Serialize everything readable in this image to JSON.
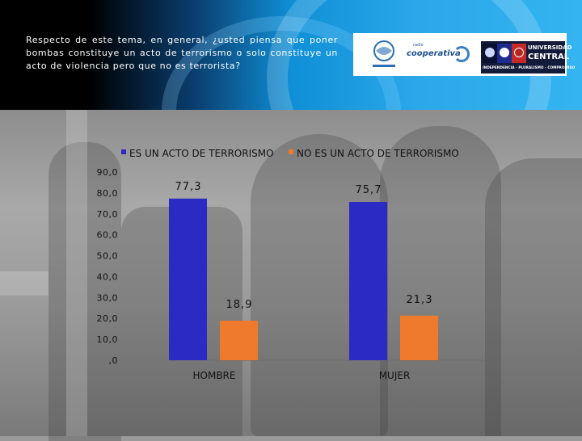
{
  "question": "Respecto de este tema, en general, ¿usted piensa que poner bombas constituye un acto de terrorismo o solo constituye un acto de violencia pero que no es terrorista?",
  "logos": {
    "coop_name": "cooperativa",
    "coop_top": "radio",
    "uc_line1": "UNIVERSIDAD",
    "uc_line2": "CENTRAL",
    "uc_tagline": "INDEPENDENCIA - PLURALISMO - COMPROMISO"
  },
  "colors": {
    "series1": "#2b2bc4",
    "series2": "#f07a2c"
  },
  "chart_data": {
    "type": "bar",
    "categories": [
      "HOMBRE",
      "MUJER"
    ],
    "series": [
      {
        "name": "ES UN ACTO DE TERRORISMO",
        "values": [
          77.3,
          75.7
        ],
        "labels": [
          "77,3",
          "75,7"
        ]
      },
      {
        "name": "NO ES UN ACTO DE TERRORISMO",
        "values": [
          18.9,
          21.3
        ],
        "labels": [
          "18,9",
          "21,3"
        ]
      }
    ],
    "ylim": [
      0,
      90
    ],
    "yticks": [
      0,
      10,
      20,
      30,
      40,
      50,
      60,
      70,
      80,
      90
    ],
    "ytick_labels": [
      ",0",
      "10,0",
      "20,0",
      "30,0",
      "40,0",
      "50,0",
      "60,0",
      "70,0",
      "80,0",
      "90,0"
    ],
    "legend_position": "top",
    "title": "",
    "xlabel": "",
    "ylabel": ""
  }
}
